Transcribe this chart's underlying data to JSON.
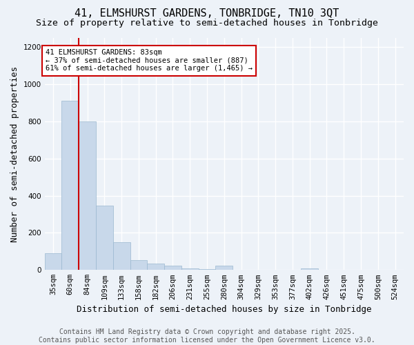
{
  "title1": "41, ELMSHURST GARDENS, TONBRIDGE, TN10 3QT",
  "title2": "Size of property relative to semi-detached houses in Tonbridge",
  "xlabel": "Distribution of semi-detached houses by size in Tonbridge",
  "ylabel": "Number of semi-detached properties",
  "bin_labels": [
    "35sqm",
    "60sqm",
    "84sqm",
    "109sqm",
    "133sqm",
    "158sqm",
    "182sqm",
    "206sqm",
    "231sqm",
    "255sqm",
    "280sqm",
    "304sqm",
    "329sqm",
    "353sqm",
    "377sqm",
    "402sqm",
    "426sqm",
    "451sqm",
    "475sqm",
    "500sqm",
    "524sqm"
  ],
  "bar_heights": [
    90,
    910,
    800,
    345,
    150,
    55,
    35,
    25,
    10,
    5,
    25,
    0,
    0,
    0,
    0,
    8,
    0,
    0,
    0,
    0,
    0
  ],
  "property_bin_index": 2,
  "bar_color": "#c8d8ea",
  "bar_edge_color": "#9ab8d0",
  "highlight_line_color": "#cc0000",
  "annotation_line1": "41 ELMSHURST GARDENS: 83sqm",
  "annotation_line2": "← 37% of semi-detached houses are smaller (887)",
  "annotation_line3": "61% of semi-detached houses are larger (1,465) →",
  "annotation_box_color": "#ffffff",
  "annotation_box_edge_color": "#cc0000",
  "footer_text": "Contains HM Land Registry data © Crown copyright and database right 2025.\nContains public sector information licensed under the Open Government Licence v3.0.",
  "ylim": [
    0,
    1250
  ],
  "yticks": [
    0,
    200,
    400,
    600,
    800,
    1000,
    1200
  ],
  "bg_color": "#edf2f8",
  "grid_color": "#ffffff",
  "title_fontsize": 11,
  "subtitle_fontsize": 9.5,
  "axis_label_fontsize": 9,
  "tick_fontsize": 7.5,
  "footer_fontsize": 7
}
